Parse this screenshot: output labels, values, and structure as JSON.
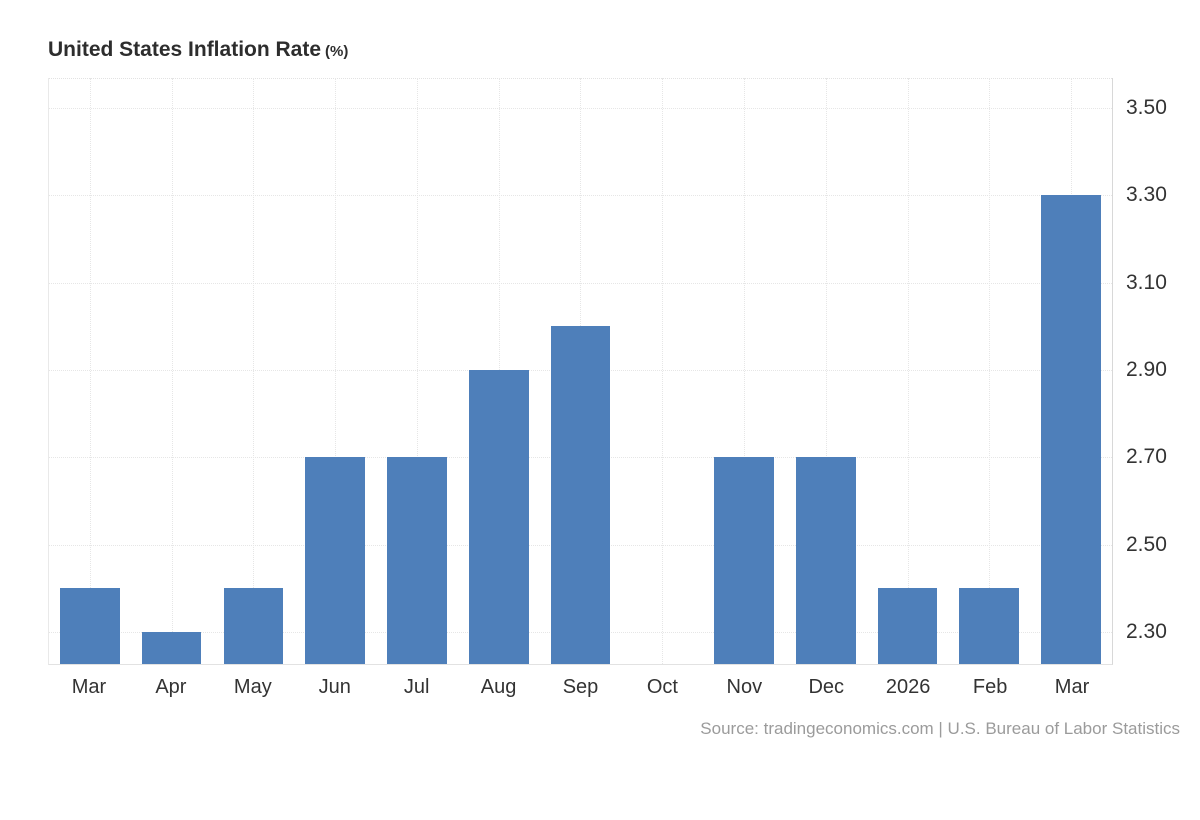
{
  "header": {
    "title": "United States Inflation Rate",
    "unit": "(%)"
  },
  "footer": {
    "source": "Source: tradingeconomics.com | U.S. Bureau of Labor Statistics"
  },
  "chart_data": {
    "type": "bar",
    "title": "United States Inflation Rate (%)",
    "categories": [
      "Mar",
      "Apr",
      "May",
      "Jun",
      "Jul",
      "Aug",
      "Sep",
      "Oct",
      "Nov",
      "Dec",
      "2026",
      "Feb",
      "Mar"
    ],
    "values": [
      2.4,
      2.3,
      2.4,
      2.7,
      2.7,
      2.9,
      3.0,
      null,
      2.7,
      2.7,
      2.4,
      2.4,
      3.3
    ],
    "missing_categories": [
      "Oct"
    ],
    "ylim": [
      2.227,
      3.568
    ],
    "yticks": [
      2.3,
      2.5,
      2.7,
      2.9,
      3.1,
      3.3,
      3.5
    ],
    "ytick_labels": [
      "2.30",
      "2.50",
      "2.70",
      "2.90",
      "3.10",
      "3.30",
      "3.50"
    ],
    "y_axis_side": "right",
    "grid": true,
    "legend_position": "none",
    "bar_color": "#4e7fba",
    "grid_color": "#e6e6e6",
    "axis_color": "#d8d8d8",
    "tick_label_color": "#333333",
    "source_color": "#9b9b9b"
  }
}
